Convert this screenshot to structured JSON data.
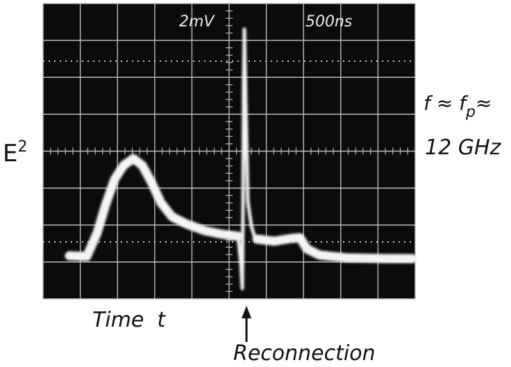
{
  "screen": {
    "volts_per_div": "2mV",
    "time_per_div": "500ns"
  },
  "y_label": {
    "symbol": "E",
    "exponent": "2"
  },
  "frequency": {
    "prefix": "f ≈ f",
    "subscript": "p",
    "suffix": "≈",
    "value": "12 GHz"
  },
  "x_label": "Time  t",
  "annotation": "Reconnection"
}
